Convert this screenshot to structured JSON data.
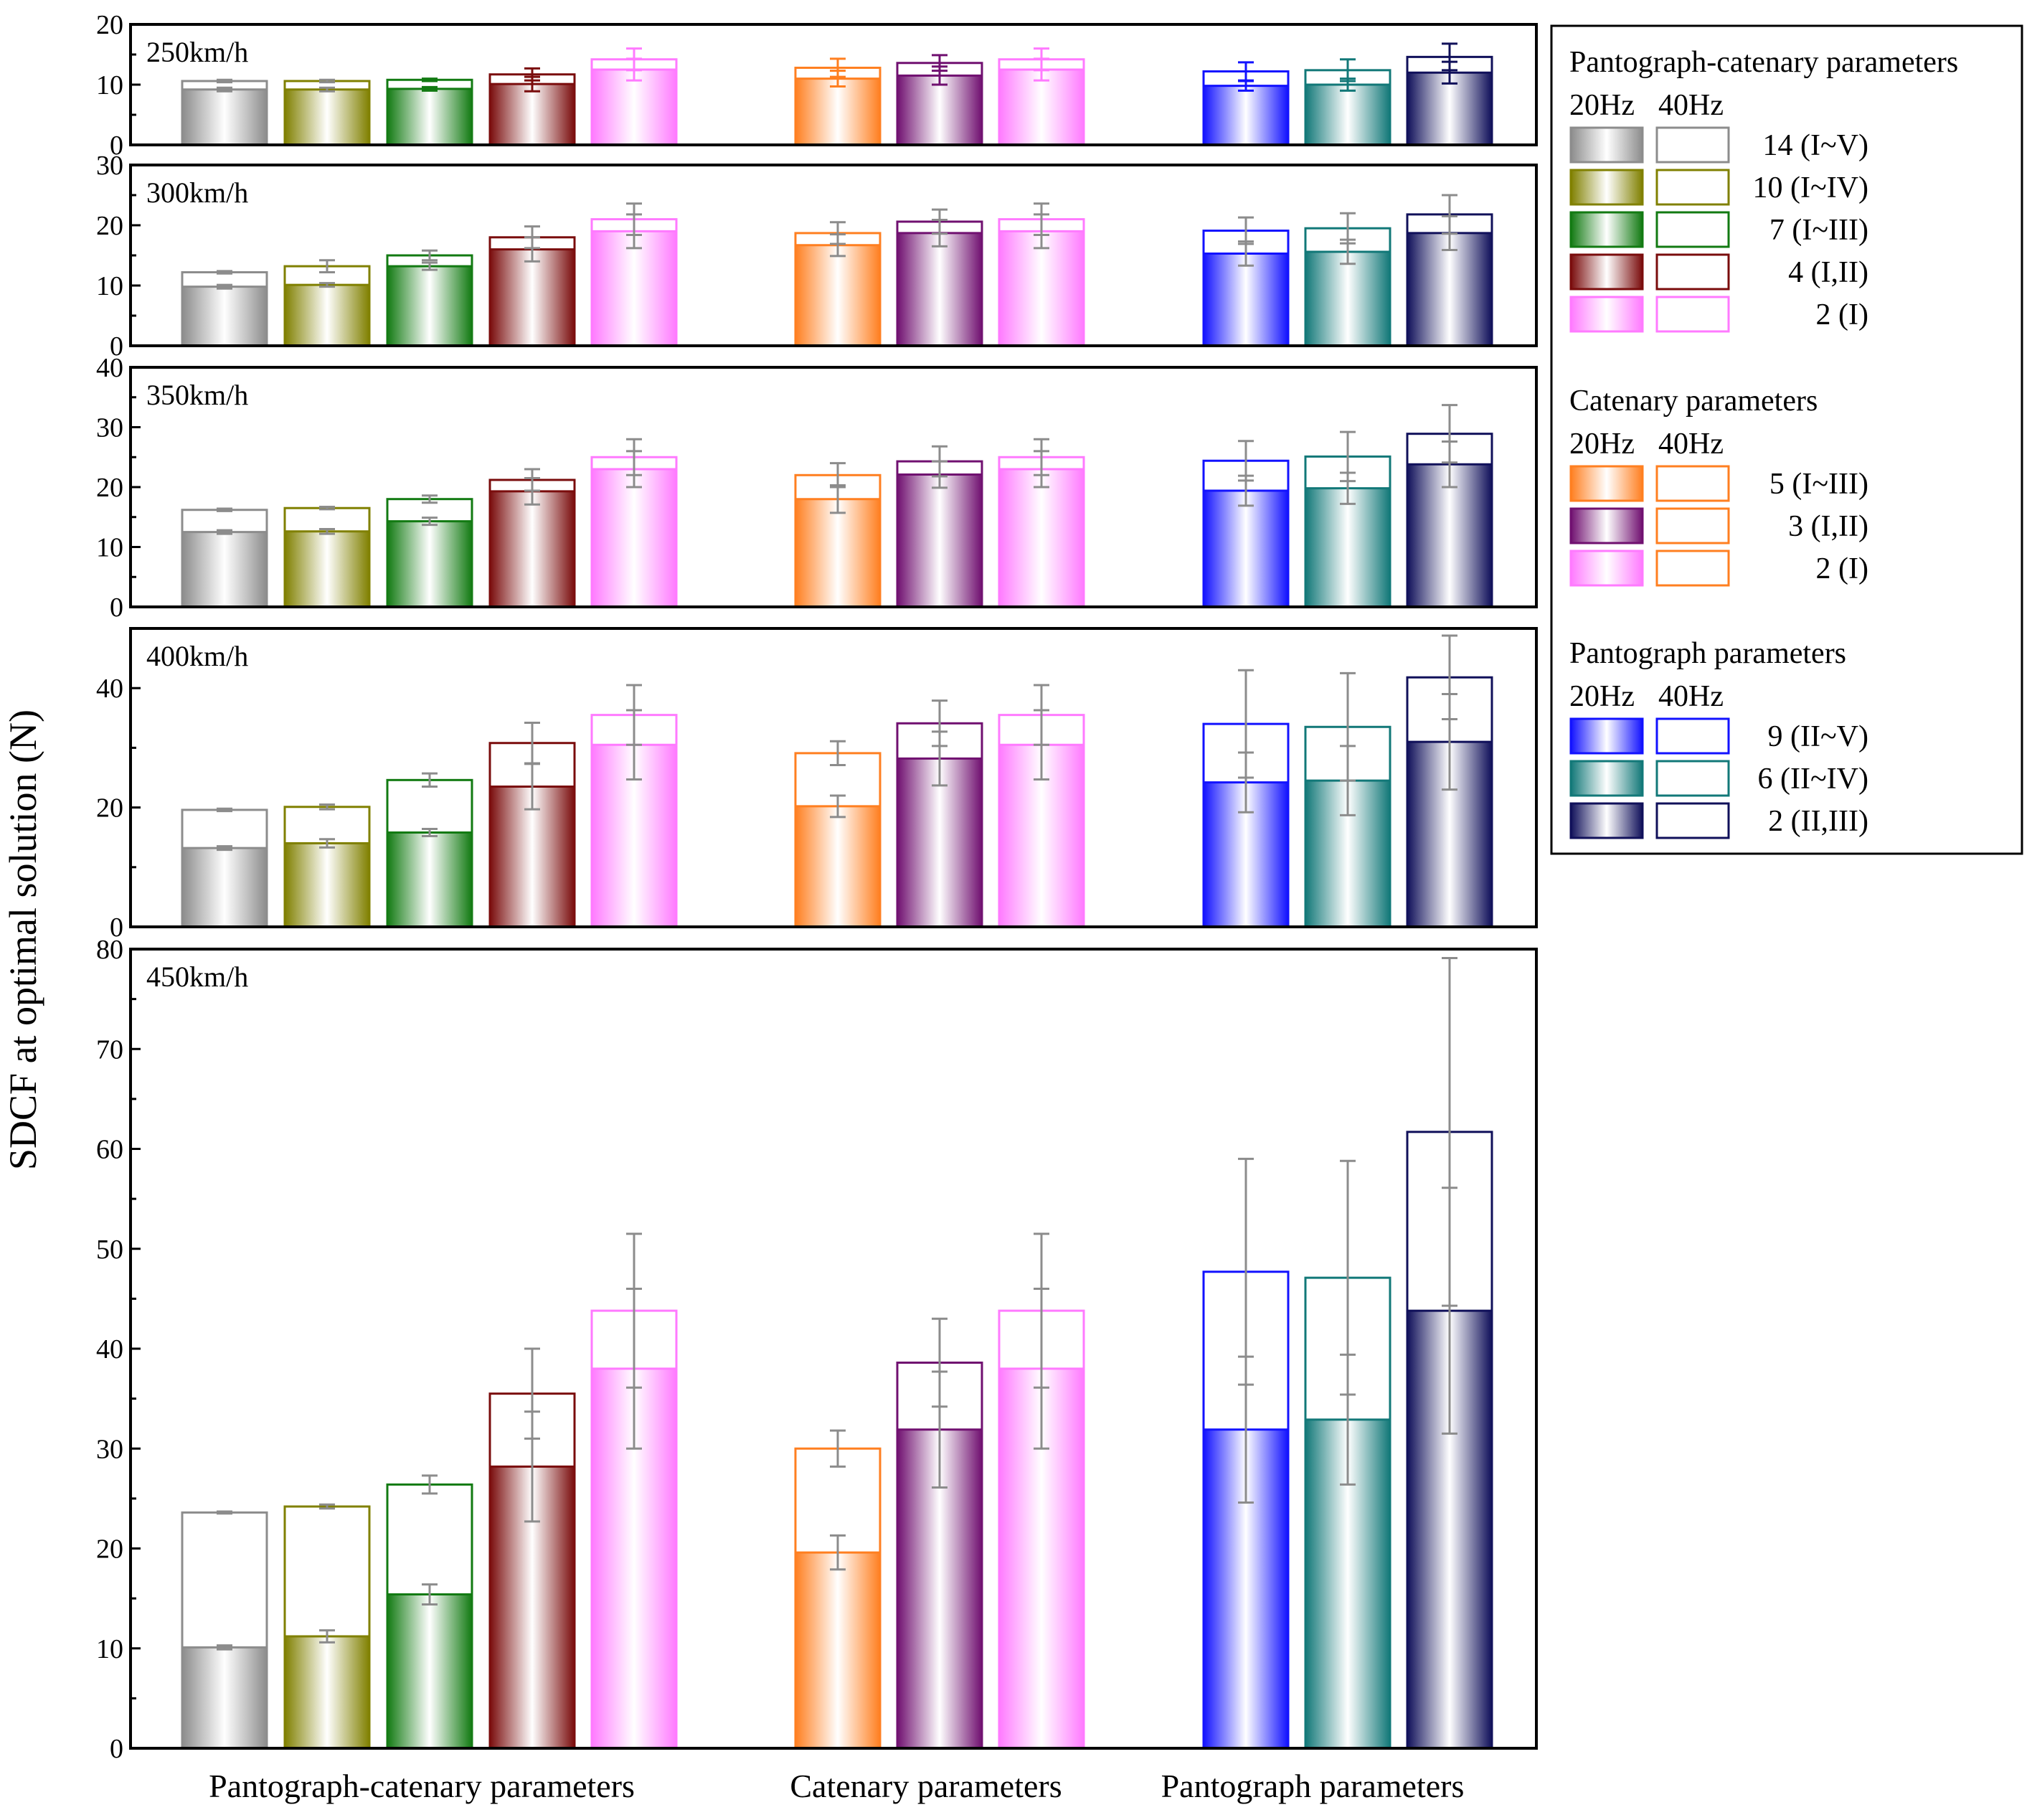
{
  "chart_data": {
    "type": "bar",
    "ylabel": "SDCF at optimal solution (N)",
    "groups": [
      "Pantograph-catenary parameters",
      "Catenary parameters",
      "Pantograph parameters"
    ],
    "bars": [
      {
        "group": 0,
        "fill": "#8c8c8c",
        "stroke": "#8c8c8c",
        "errColor": "#8c8c8c"
      },
      {
        "group": 0,
        "fill": "#808000",
        "stroke": "#808000",
        "errColor": "#8c8c8c"
      },
      {
        "group": 0,
        "fill": "#127a12",
        "stroke": "#127a12",
        "errColor": "#8c8c8c"
      },
      {
        "group": 0,
        "fill": "#7a0c0c",
        "stroke": "#7a0c0c",
        "errColor": "#8c8c8c"
      },
      {
        "group": 0,
        "fill": "#ff7aff",
        "stroke": "#ff7aff",
        "errColor": "#8c8c8c"
      },
      {
        "group": 1,
        "fill": "#ff7f20",
        "stroke": "#ff7f20",
        "errColor": "#8c8c8c"
      },
      {
        "group": 1,
        "fill": "#701070",
        "stroke": "#701070",
        "errColor": "#8c8c8c"
      },
      {
        "group": 1,
        "fill": "#ff7aff",
        "stroke": "#ff7aff",
        "errColor": "#8c8c8c"
      },
      {
        "group": 2,
        "fill": "#1212ff",
        "stroke": "#1212ff",
        "errColor": "#8c8c8c"
      },
      {
        "group": 2,
        "fill": "#127878",
        "stroke": "#127878",
        "errColor": "#8c8c8c"
      },
      {
        "group": 2,
        "fill": "#10105a",
        "stroke": "#10105a",
        "errColor": "#8c8c8c"
      }
    ],
    "panels": [
      {
        "label": "250km/h",
        "ylim": [
          0,
          20
        ],
        "yticks": [
          0,
          10,
          20
        ],
        "minor": [
          5,
          15
        ],
        "v20": [
          9.2,
          9.2,
          9.3,
          10.1,
          12.5,
          11,
          11.5,
          12.5,
          9.8,
          10,
          12
        ],
        "e20": [
          0.3,
          0.3,
          0.3,
          1.2,
          1.8,
          1.3,
          1.5,
          1.8,
          0.8,
          1.0,
          1.8
        ],
        "v40": [
          10.6,
          10.6,
          10.8,
          11.7,
          14.2,
          12.8,
          13.6,
          14.2,
          12.2,
          12.4,
          14.6
        ],
        "e40": [
          0.2,
          0.2,
          0.2,
          1.0,
          1.8,
          1.5,
          1.3,
          1.8,
          1.5,
          1.8,
          2.2
        ],
        "errColors": [
          "#8c8c8c",
          "#8c8c8c",
          "#127a12",
          "#7a0c0c",
          "#ff7aff",
          "#ff7f20",
          "#701070",
          "#ff7aff",
          "#1212ff",
          "#127878",
          "#10105a"
        ]
      },
      {
        "label": "300km/h",
        "ylim": [
          0,
          30
        ],
        "yticks": [
          0,
          10,
          20,
          30
        ],
        "minor": [
          5,
          15,
          25
        ],
        "v20": [
          9.8,
          10.1,
          13.2,
          16,
          19,
          16.7,
          18.7,
          19,
          15.3,
          15.6,
          18.7
        ],
        "e20": [
          0.3,
          0.3,
          0.6,
          2.0,
          2.8,
          1.8,
          2.2,
          2.8,
          2.0,
          2.0,
          2.8
        ],
        "v40": [
          12.2,
          13.2,
          15,
          18,
          21,
          18.7,
          20.6,
          21,
          19.1,
          19.5,
          21.8
        ],
        "e40": [
          0.2,
          1.0,
          0.8,
          1.8,
          2.6,
          1.8,
          2.0,
          2.6,
          2.2,
          2.5,
          3.2
        ],
        "errColors": []
      },
      {
        "label": "350km/h",
        "ylim": [
          0,
          40
        ],
        "yticks": [
          0,
          10,
          20,
          30,
          40
        ],
        "minor": [
          5,
          15,
          25,
          35
        ],
        "v20": [
          12.5,
          12.6,
          14.3,
          19.3,
          23,
          18,
          22.1,
          23,
          19.4,
          19.8,
          23.8
        ],
        "e20": [
          0.3,
          0.4,
          0.6,
          2.2,
          3.0,
          2.3,
          2.2,
          3.0,
          2.5,
          2.6,
          3.8
        ],
        "v40": [
          16.2,
          16.5,
          18,
          21.2,
          25,
          22,
          24.3,
          25,
          24.4,
          25.1,
          28.9
        ],
        "e40": [
          0.2,
          0.2,
          0.6,
          1.8,
          3.0,
          2.0,
          2.5,
          3.0,
          3.3,
          4.1,
          4.8
        ],
        "errColors": []
      },
      {
        "label": "400km/h",
        "ylim": [
          0,
          50
        ],
        "yticks": [
          0,
          20,
          40
        ],
        "minor": [
          10,
          30
        ],
        "v20": [
          13.2,
          14,
          15.8,
          23.5,
          30.5,
          20.2,
          28.2,
          30.5,
          24.2,
          24.5,
          31
        ],
        "e20": [
          0.3,
          0.7,
          0.6,
          3.8,
          5.8,
          1.8,
          4.5,
          5.8,
          5.0,
          5.8,
          8.0
        ],
        "v40": [
          19.6,
          20.1,
          24.6,
          30.8,
          35.5,
          29.1,
          34.1,
          35.5,
          34,
          33.5,
          41.8
        ],
        "e40": [
          0.2,
          0.4,
          1.1,
          3.4,
          5.0,
          2.0,
          3.8,
          5.0,
          9.0,
          9.0,
          7.0
        ],
        "errColors": []
      },
      {
        "label": "450km/h",
        "ylim": [
          0,
          80
        ],
        "yticks": [
          0,
          10,
          20,
          30,
          40,
          50,
          60,
          70,
          80
        ],
        "minor": [
          5,
          15,
          25,
          35,
          45,
          55,
          65,
          75
        ],
        "v20": [
          10.1,
          11.2,
          15.4,
          28.2,
          38,
          19.6,
          31.9,
          38,
          31.9,
          32.9,
          43.8
        ],
        "e20": [
          0.2,
          0.6,
          1.0,
          5.5,
          8.0,
          1.7,
          5.8,
          8.0,
          7.3,
          6.5,
          12.3
        ],
        "v40": [
          23.6,
          24.2,
          26.4,
          35.5,
          43.8,
          30,
          38.6,
          43.8,
          47.7,
          47.1,
          61.7
        ],
        "e40": [
          0.1,
          0.2,
          0.9,
          4.5,
          7.7,
          1.8,
          4.4,
          7.7,
          11.3,
          11.7,
          17.4
        ],
        "errColors": []
      }
    ]
  },
  "legend": {
    "sections": [
      {
        "title": "Pantograph-catenary parameters",
        "head20": "20Hz",
        "head40": "40Hz",
        "items": [
          {
            "label": "14 (I~V)",
            "color": "#8c8c8c",
            "color40": "#8c8c8c"
          },
          {
            "label": "10 (I~IV)",
            "color": "#808000",
            "color40": "#808000"
          },
          {
            "label": "7 (I~III)",
            "color": "#127a12",
            "color40": "#127a12"
          },
          {
            "label": "4 (I,II)",
            "color": "#7a0c0c",
            "color40": "#7a0c0c"
          },
          {
            "label": "2 (I)",
            "color": "#ff7aff",
            "color40": "#ff7aff"
          }
        ]
      },
      {
        "title": "Catenary parameters",
        "head20": "20Hz",
        "head40": "40Hz",
        "items": [
          {
            "label": "5 (I~III)",
            "color": "#ff7f20",
            "color40": "#ff7f20"
          },
          {
            "label": "3 (I,II)",
            "color": "#701070",
            "color40": "#ff7f20"
          },
          {
            "label": "2 (I)",
            "color": "#ff7aff",
            "color40": "#ff7f20"
          }
        ]
      },
      {
        "title": "Pantograph parameters",
        "head20": "20Hz",
        "head40": "40Hz",
        "items": [
          {
            "label": "9 (II~V)",
            "color": "#1212ff",
            "color40": "#1212ff"
          },
          {
            "label": "6 (II~IV)",
            "color": "#127878",
            "color40": "#127878"
          },
          {
            "label": "2 (II,III)",
            "color": "#10105a",
            "color40": "#10105a"
          }
        ]
      }
    ]
  }
}
